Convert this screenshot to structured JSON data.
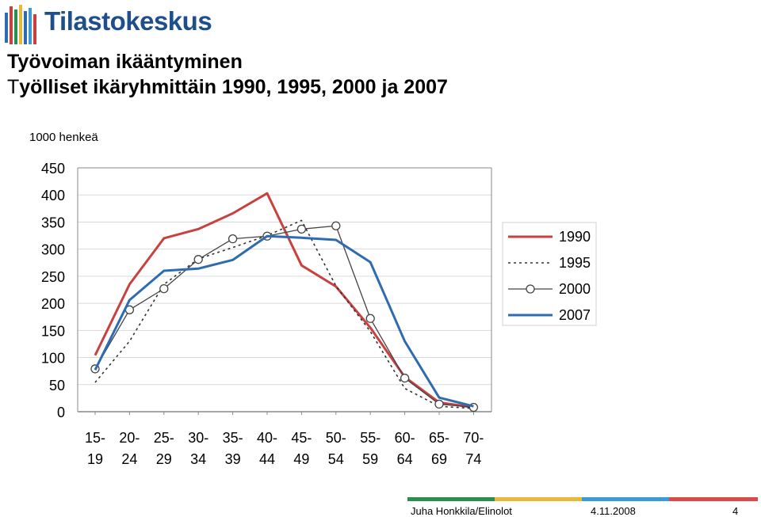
{
  "header": {
    "logo_text": "Tilastokeskus",
    "title": "Työvoiman ikääntyminen",
    "subtitle_first": "T",
    "subtitle_rest": "yölliset ikäryhmittäin 1990, 1995, 2000 ja 2007"
  },
  "chart_data": {
    "type": "line",
    "ylabel": "1000 henkeä",
    "ylim": [
      0,
      450
    ],
    "yticks": [
      "0",
      "50",
      "100",
      "150",
      "200",
      "250",
      "300",
      "350",
      "400",
      "450"
    ],
    "categories": [
      [
        "15-",
        "19"
      ],
      [
        "20-",
        "24"
      ],
      [
        "25-",
        "29"
      ],
      [
        "30-",
        "34"
      ],
      [
        "35-",
        "39"
      ],
      [
        "40-",
        "44"
      ],
      [
        "45-",
        "49"
      ],
      [
        "50-",
        "54"
      ],
      [
        "55-",
        "59"
      ],
      [
        "60-",
        "64"
      ],
      [
        "65-",
        "69"
      ],
      [
        "70-",
        "74"
      ]
    ],
    "grid": true,
    "legend_position": "right",
    "series": [
      {
        "name": "1990",
        "color": "#c8413f",
        "style": "solid",
        "marker": "none",
        "values": [
          104,
          235,
          320,
          337,
          366,
          403,
          270,
          231,
          155,
          64,
          17,
          8
        ]
      },
      {
        "name": "1995",
        "color": "#333333",
        "style": "dotted",
        "marker": "none",
        "values": [
          54,
          130,
          235,
          282,
          303,
          325,
          353,
          232,
          148,
          43,
          10,
          6
        ]
      },
      {
        "name": "2000",
        "color": "#444444",
        "style": "solid",
        "marker": "circle",
        "values": [
          79,
          188,
          227,
          281,
          319,
          324,
          337,
          343,
          172,
          62,
          14,
          8
        ]
      },
      {
        "name": "2007",
        "color": "#2e6bb0",
        "style": "solid",
        "marker": "none",
        "values": [
          77,
          206,
          260,
          264,
          280,
          324,
          321,
          317,
          276,
          130,
          26,
          10
        ]
      }
    ]
  },
  "footer": {
    "author": "Juha Honkkila/Elinolot",
    "date": "4.11.2008",
    "page": "4",
    "bar_colors": [
      "#2a8f4a",
      "#e7b93a",
      "#3a9bd5",
      "#d94a4a"
    ]
  }
}
